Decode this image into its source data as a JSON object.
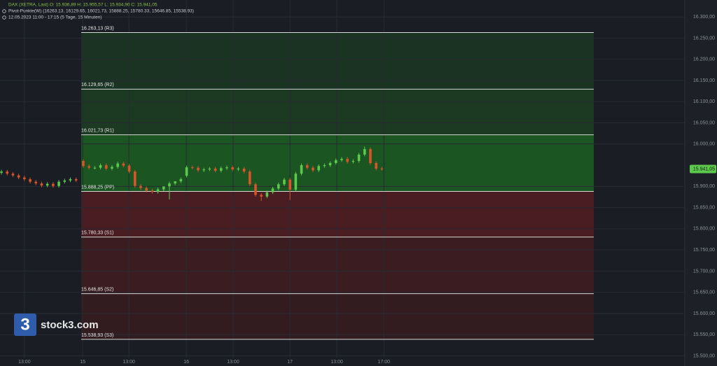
{
  "header": {
    "line1": "DAX (XETRA, Last)   O: 15.936,89   H: 15.955,57   L: 15.934,90   C: 15.941,05",
    "line2": "Pivot-Punkte(W)   (16263.13,  16129.65,  16021.73,  15888.25,  15780.33,  15646.85,  15538.93)",
    "line3": "12.05.2023 11:00 - 17:15   (5 Tage, 15 Minuten)"
  },
  "logo": {
    "text": "stock3.com",
    "mark": "3"
  },
  "chart_data": {
    "type": "candlestick",
    "xlim": [
      0,
      238.5
    ],
    "ylim": [
      15476,
      16340
    ],
    "xticks": [
      {
        "value": 8.5,
        "label": "13:00"
      },
      {
        "value": 28.8,
        "label": "15"
      },
      {
        "value": 44.9,
        "label": "13:00"
      },
      {
        "value": 64.9,
        "label": "16"
      },
      {
        "value": 81.2,
        "label": "13:00"
      },
      {
        "value": 101,
        "label": "17"
      },
      {
        "value": 117.3,
        "label": "13:00"
      },
      {
        "value": 133.7,
        "label": "17:00"
      }
    ],
    "yticks": [
      {
        "value": 15500,
        "label": "15.500,00"
      },
      {
        "value": 15550,
        "label": "15.550,00"
      },
      {
        "value": 15600,
        "label": "15.600,00"
      },
      {
        "value": 15650,
        "label": "15.650,00"
      },
      {
        "value": 15700,
        "label": "15.700,00"
      },
      {
        "value": 15750,
        "label": "15.750,00"
      },
      {
        "value": 15800,
        "label": "15.800,00"
      },
      {
        "value": 15850,
        "label": "15.850,00"
      },
      {
        "value": 15900,
        "label": "15.900,00"
      },
      {
        "value": 16000,
        "label": "16.000,00"
      },
      {
        "value": 16050,
        "label": "16.050,00"
      },
      {
        "value": 16100,
        "label": "16.100,00"
      },
      {
        "value": 16150,
        "label": "16.150,00"
      },
      {
        "value": 16200,
        "label": "16.200,00"
      },
      {
        "value": 16250,
        "label": "16.250,00"
      },
      {
        "value": 16300,
        "label": "16.300,00"
      }
    ],
    "grid": true,
    "up_color": "#5cc84e",
    "down_color": "#d9542b",
    "last_price": {
      "value": 15941.05,
      "label": "15.941,05"
    },
    "pivots": [
      {
        "value": 16263.13,
        "label": "16.263,13 (R3)"
      },
      {
        "value": 16129.65,
        "label": "16.129,65 (R2)"
      },
      {
        "value": 16021.73,
        "label": "16.021,73 (R1)"
      },
      {
        "value": 15888.25,
        "label": "15.888,25 (PP)"
      },
      {
        "value": 15780.33,
        "label": "15.780,33 (S1)"
      },
      {
        "value": 15646.85,
        "label": "15.646,85 (S2)"
      },
      {
        "value": 15538.93,
        "label": "15.538,93 (S3)"
      }
    ],
    "series": [
      {
        "x": [
          0.5,
          2.5,
          4.5,
          6.5,
          8.5,
          10.5,
          12.5,
          14.5,
          16.5,
          18.5,
          20.5,
          22.5,
          24.5,
          26.5,
          29,
          31,
          33,
          35,
          37,
          39,
          41,
          43,
          45,
          47,
          49,
          51,
          53,
          55,
          57,
          59,
          61,
          63,
          65,
          67,
          69,
          71,
          73,
          75,
          77,
          79,
          81,
          83,
          85,
          87,
          89,
          91,
          93,
          95,
          97,
          99,
          101,
          103,
          105,
          107,
          109,
          111,
          113,
          115,
          117,
          119,
          121,
          123,
          125,
          127,
          129,
          131,
          133
        ],
        "open": [
          15932,
          15935,
          15930,
          15926,
          15921,
          15917,
          15911,
          15907,
          15902,
          15906,
          15901,
          15911,
          15914,
          15917,
          15960,
          15948,
          15944,
          15944,
          15950,
          15942,
          15946,
          15954,
          15949,
          15935,
          15901,
          15896,
          15890,
          15887,
          15893,
          15900,
          15907,
          15912,
          15925,
          15945,
          15944,
          15938,
          15940,
          15942,
          15937,
          15943,
          15945,
          15940,
          15942,
          15935,
          15905,
          15880,
          15876,
          15886,
          15895,
          15905,
          15916,
          15892,
          15930,
          15950,
          15944,
          15938,
          15948,
          15950,
          15955,
          15962,
          15965,
          15958,
          15960,
          15975,
          15988,
          15955,
          15942
        ],
        "high": [
          15939,
          15939,
          15934,
          15930,
          15925,
          15921,
          15915,
          15911,
          15910,
          15910,
          15915,
          15918,
          15921,
          15921,
          15964,
          15952,
          15948,
          15954,
          15954,
          15950,
          15958,
          15958,
          15953,
          15939,
          15905,
          15900,
          15894,
          15897,
          15897,
          15911,
          15911,
          15921,
          15949,
          15949,
          15948,
          15944,
          15946,
          15946,
          15947,
          15949,
          15949,
          15946,
          15946,
          15939,
          15909,
          15884,
          15890,
          15899,
          15909,
          15920,
          15920,
          15934,
          15954,
          15954,
          15948,
          15952,
          15954,
          15959,
          15966,
          15969,
          15969,
          15964,
          15979,
          15994,
          15992,
          15959,
          15946
        ],
        "low": [
          15928,
          15926,
          15922,
          15917,
          15913,
          15907,
          15903,
          15898,
          15898,
          15897,
          15897,
          15907,
          15910,
          15910,
          15944,
          15940,
          15940,
          15940,
          15938,
          15938,
          15942,
          15945,
          15931,
          15897,
          15892,
          15886,
          15883,
          15883,
          15889,
          15869,
          15903,
          15908,
          15921,
          15940,
          15934,
          15934,
          15936,
          15933,
          15933,
          15939,
          15936,
          15936,
          15931,
          15901,
          15876,
          15866,
          15872,
          15882,
          15891,
          15901,
          15868,
          15888,
          15926,
          15940,
          15934,
          15934,
          15944,
          15946,
          15951,
          15958,
          15954,
          15954,
          15956,
          15971,
          15951,
          15938,
          15937
        ],
        "close": [
          15935,
          15930,
          15926,
          15921,
          15917,
          15911,
          15907,
          15902,
          15906,
          15901,
          15911,
          15914,
          15917,
          15914,
          15948,
          15944,
          15944,
          15950,
          15942,
          15946,
          15954,
          15949,
          15935,
          15901,
          15896,
          15890,
          15887,
          15893,
          15900,
          15907,
          15912,
          15917,
          15945,
          15944,
          15938,
          15940,
          15942,
          15937,
          15943,
          15945,
          15940,
          15942,
          15935,
          15905,
          15880,
          15876,
          15886,
          15895,
          15905,
          15916,
          15892,
          15930,
          15950,
          15944,
          15938,
          15948,
          15950,
          15955,
          15962,
          15965,
          15958,
          15960,
          15975,
          15988,
          15955,
          15942,
          15941.05
        ]
      }
    ]
  }
}
